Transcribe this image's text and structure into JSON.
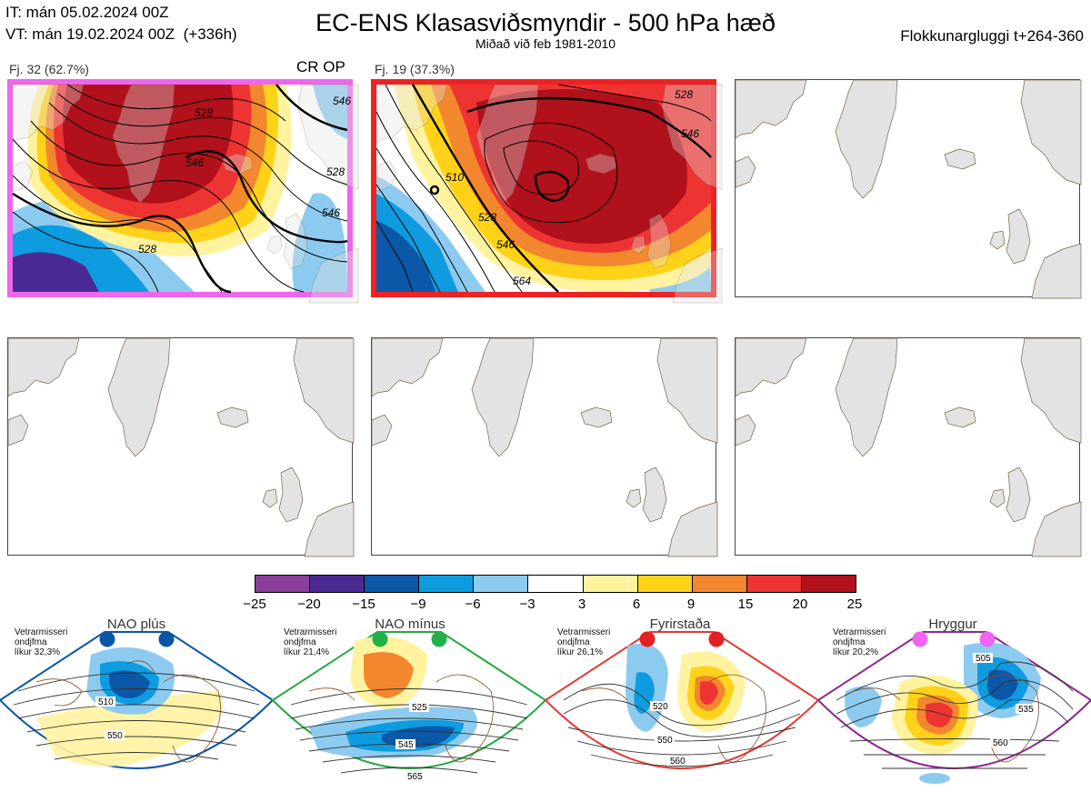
{
  "header": {
    "it_line": "IT: mán 05.02.2024 00Z",
    "vt_line": "VT: mán 19.02.2024 00Z  (+336h)",
    "title": "EC-ENS Klasasviðsmyndir - 500 hPa hæð",
    "subtitle": "Miðað við feb 1981-2010",
    "window": "Flokkunargluggi t+264-360"
  },
  "clusters": [
    {
      "label": "Fj. 32 (62.7%)",
      "tag": "CR OP",
      "frame_color": "#ee66ee",
      "contour_labels": [
        "528",
        "546",
        "528",
        "546",
        "528",
        "546"
      ]
    },
    {
      "label": "Fj. 19 (37.3%)",
      "tag": "",
      "frame_color": "#ee2222",
      "contour_labels": [
        "510",
        "528",
        "546",
        "564",
        "546",
        "528"
      ]
    }
  ],
  "colorbar": {
    "ticks": [
      "−25",
      "−20",
      "−15",
      "−9",
      "−6",
      "−3",
      "3",
      "6",
      "9",
      "15",
      "20",
      "25"
    ],
    "colors": [
      "#8a3f9c",
      "#4b2a94",
      "#0b57a8",
      "#0e9be0",
      "#8ccbef",
      "#ffffff",
      "#fff3a0",
      "#ffd21a",
      "#f2872e",
      "#ee3333",
      "#b0111a"
    ]
  },
  "regimes": [
    {
      "name": "NAO plús",
      "note": [
        "Vetrarmisseri",
        "ondjfma",
        "líkur 32,3%"
      ],
      "frame_color": "#0a56a5",
      "dot_color": "#0a56a5",
      "labels": [
        "510",
        "550"
      ]
    },
    {
      "name": "NAO mínus",
      "note": [
        "Vetrarmisseri",
        "ondjfma",
        "líkur 21,4%"
      ],
      "frame_color": "#28a745",
      "dot_color": "#22b04b",
      "labels": [
        "525",
        "545",
        "565"
      ]
    },
    {
      "name": "Fyrirstaða",
      "note": [
        "Vetrarmisseri",
        "ondjfma",
        "líkur 26,1%"
      ],
      "frame_color": "#e53935",
      "dot_color": "#e52020",
      "labels": [
        "520",
        "550",
        "560"
      ]
    },
    {
      "name": "Hryggur",
      "note": [
        "Vetrarmisseri",
        "ondjfma",
        "líkur 20,2%"
      ],
      "frame_color": "#8e2a8e",
      "dot_color": "#ee66ee",
      "labels": [
        "505",
        "535",
        "560"
      ]
    }
  ]
}
